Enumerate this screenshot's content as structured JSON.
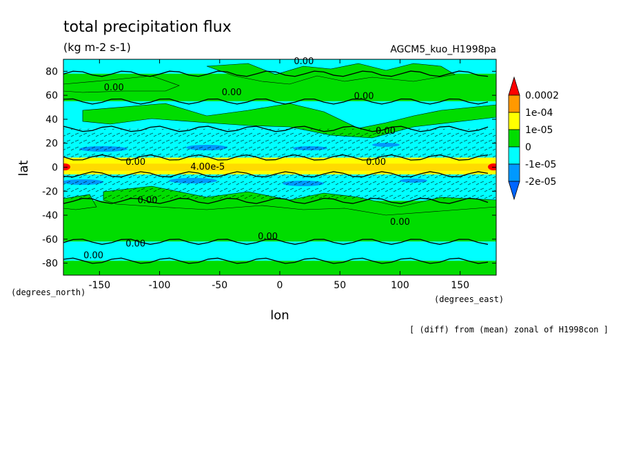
{
  "chart_data": {
    "type": "heatmap",
    "title": "total precipitation flux",
    "units": "(kg m-2 s-1)",
    "model_label": "AGCM5_kuo_H1998pa",
    "xlabel": "lon",
    "ylabel": "lat",
    "x_unit_label": "(degrees_east)",
    "y_unit_label": "(degrees_north)",
    "xlim": [
      -180,
      180
    ],
    "ylim": [
      -90,
      90
    ],
    "x_ticks": [
      -150,
      -100,
      -50,
      0,
      50,
      100,
      150
    ],
    "y_ticks": [
      80,
      60,
      40,
      20,
      0,
      -20,
      -40,
      -60,
      -80
    ],
    "colorbar": {
      "levels": [
        "0.0002",
        "1e-04",
        "1e-05",
        "0",
        "-1e-05",
        "-2e-05"
      ],
      "colors": [
        "#ff0000",
        "#ff9900",
        "#ffff00",
        "#00dd00",
        "#00ffff",
        "#0099ff",
        "#0066ff"
      ]
    },
    "bands": [
      {
        "lat_top": 90,
        "lat_bottom": 78,
        "category": "negative_small"
      },
      {
        "lat_top": 78,
        "lat_bottom": 55,
        "category": "zero"
      },
      {
        "lat_top": 55,
        "lat_bottom": 32,
        "category": "negative_small"
      },
      {
        "lat_top": 32,
        "lat_bottom": 8,
        "category": "negative_small"
      },
      {
        "lat_top": 8,
        "lat_bottom": -6,
        "category": "positive"
      },
      {
        "lat_top": -6,
        "lat_bottom": -28,
        "category": "negative_small"
      },
      {
        "lat_top": -28,
        "lat_bottom": -62,
        "category": "zero"
      },
      {
        "lat_top": -62,
        "lat_bottom": -78,
        "category": "negative_small"
      },
      {
        "lat_top": -78,
        "lat_bottom": -90,
        "category": "zero"
      }
    ],
    "contour_labels": [
      {
        "text": "0.00",
        "lon": 20,
        "lat": 86
      },
      {
        "text": "0.00",
        "lon": -138,
        "lat": 64
      },
      {
        "text": "0.00",
        "lon": -40,
        "lat": 60
      },
      {
        "text": "0.00",
        "lon": 70,
        "lat": 57
      },
      {
        "text": "0.00",
        "lon": 88,
        "lat": 28
      },
      {
        "text": "0.00",
        "lon": -120,
        "lat": 2
      },
      {
        "text": "4.00e-5",
        "lon": -60,
        "lat": -2
      },
      {
        "text": "0.00",
        "lon": 80,
        "lat": 2
      },
      {
        "text": "0.00",
        "lon": -110,
        "lat": -30
      },
      {
        "text": "0.00",
        "lon": 100,
        "lat": -48
      },
      {
        "text": "0.00",
        "lon": -10,
        "lat": -60
      },
      {
        "text": "0.00",
        "lon": -120,
        "lat": -66
      },
      {
        "text": "0.00",
        "lon": -155,
        "lat": -76
      }
    ]
  },
  "footer_note": "[ (diff) from (mean) zonal of H1998con ]"
}
